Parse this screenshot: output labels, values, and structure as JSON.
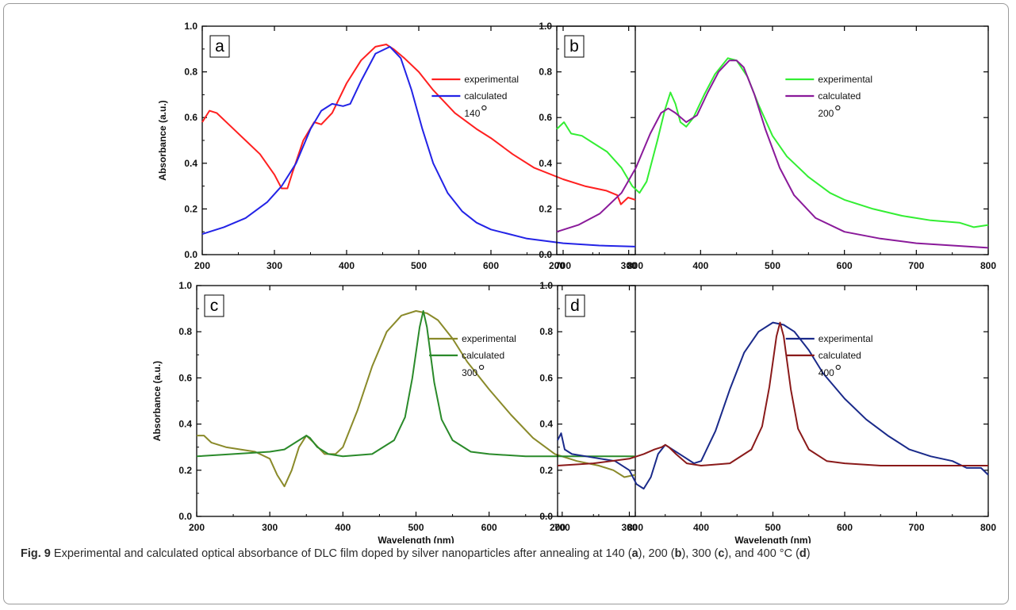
{
  "caption": {
    "label": "Fig. 9",
    "text_a": " Experimental and calculated optical absorbance of DLC film doped by silver nanoparticles after annealing at 140 (",
    "a": "a",
    "text_b": "), 200 (",
    "b": "b",
    "text_c": "), 300 (",
    "c": "c",
    "text_d": "), and 400 °C (",
    "d": "d",
    "text_end": ")"
  },
  "chart_data": [
    {
      "type": "line",
      "panel_label": "a",
      "temperature_label": "140",
      "ylabel": "Absorbance (a.u.)",
      "xlabel": "",
      "xlim": [
        200,
        800
      ],
      "ylim": [
        0.0,
        1.0
      ],
      "xticks": [
        200,
        300,
        400,
        500,
        600,
        700,
        800
      ],
      "yticks": [
        0.0,
        0.2,
        0.4,
        0.6,
        0.8,
        1.0
      ],
      "tick_labels_x": [
        "200",
        "300",
        "400",
        "500",
        "600",
        "700",
        "800"
      ],
      "tick_labels_y": [
        "0.0",
        "0.2",
        "0.4",
        "0.6",
        "0.8",
        "1.0"
      ],
      "legend_position": "top-right",
      "series": [
        {
          "name": "experimental",
          "color": "#ff2020",
          "x": [
            200,
            210,
            220,
            240,
            260,
            280,
            300,
            310,
            318,
            325,
            340,
            355,
            365,
            380,
            400,
            420,
            440,
            455,
            465,
            480,
            500,
            520,
            550,
            580,
            600,
            630,
            660,
            700,
            730,
            760,
            775,
            780,
            790,
            800
          ],
          "y": [
            0.58,
            0.63,
            0.62,
            0.56,
            0.5,
            0.44,
            0.35,
            0.29,
            0.29,
            0.36,
            0.5,
            0.58,
            0.57,
            0.62,
            0.75,
            0.85,
            0.91,
            0.92,
            0.9,
            0.86,
            0.8,
            0.72,
            0.62,
            0.55,
            0.51,
            0.44,
            0.38,
            0.33,
            0.3,
            0.28,
            0.26,
            0.22,
            0.25,
            0.24
          ]
        },
        {
          "name": "calculated",
          "color": "#2323e6",
          "x": [
            200,
            230,
            260,
            290,
            310,
            330,
            350,
            365,
            380,
            395,
            405,
            420,
            440,
            460,
            475,
            490,
            505,
            520,
            540,
            560,
            580,
            600,
            650,
            700,
            750,
            800
          ],
          "y": [
            0.09,
            0.12,
            0.16,
            0.23,
            0.3,
            0.4,
            0.55,
            0.63,
            0.66,
            0.65,
            0.66,
            0.76,
            0.88,
            0.91,
            0.86,
            0.72,
            0.55,
            0.4,
            0.27,
            0.19,
            0.14,
            0.11,
            0.07,
            0.05,
            0.04,
            0.035
          ]
        }
      ]
    },
    {
      "type": "line",
      "panel_label": "b",
      "temperature_label": "200",
      "ylabel": "",
      "xlabel": "",
      "xlim": [
        200,
        800
      ],
      "ylim": [
        0.0,
        1.0
      ],
      "xticks": [
        200,
        300,
        400,
        500,
        600,
        700,
        800
      ],
      "yticks": [
        0.0,
        0.2,
        0.4,
        0.6,
        0.8,
        1.0
      ],
      "tick_labels_x": [
        "200",
        "300",
        "400",
        "500",
        "600",
        "700",
        "800"
      ],
      "tick_labels_y": [
        "0.0",
        "0.2",
        "0.4",
        "0.6",
        "0.8",
        "1.0"
      ],
      "legend_position": "top-right",
      "series": [
        {
          "name": "experimental",
          "color": "#33ee33",
          "x": [
            200,
            210,
            220,
            235,
            250,
            270,
            290,
            305,
            315,
            325,
            340,
            350,
            358,
            365,
            372,
            380,
            390,
            405,
            420,
            438,
            450,
            465,
            480,
            500,
            520,
            550,
            580,
            600,
            640,
            680,
            720,
            760,
            780,
            800
          ],
          "y": [
            0.55,
            0.58,
            0.53,
            0.52,
            0.49,
            0.45,
            0.38,
            0.3,
            0.27,
            0.32,
            0.5,
            0.63,
            0.71,
            0.66,
            0.58,
            0.56,
            0.6,
            0.7,
            0.79,
            0.86,
            0.85,
            0.78,
            0.66,
            0.52,
            0.43,
            0.34,
            0.27,
            0.24,
            0.2,
            0.17,
            0.15,
            0.14,
            0.12,
            0.13
          ]
        },
        {
          "name": "calculated",
          "color": "#8a1a9a",
          "x": [
            200,
            230,
            260,
            290,
            310,
            330,
            345,
            355,
            365,
            380,
            395,
            410,
            425,
            440,
            450,
            460,
            475,
            490,
            510,
            530,
            560,
            600,
            650,
            700,
            750,
            800
          ],
          "y": [
            0.1,
            0.13,
            0.18,
            0.27,
            0.38,
            0.53,
            0.62,
            0.64,
            0.62,
            0.58,
            0.61,
            0.71,
            0.8,
            0.85,
            0.85,
            0.82,
            0.7,
            0.55,
            0.38,
            0.26,
            0.16,
            0.1,
            0.07,
            0.05,
            0.04,
            0.03
          ]
        }
      ]
    },
    {
      "type": "line",
      "panel_label": "c",
      "temperature_label": "300",
      "ylabel": "Absorbance (a.u.)",
      "xlabel": "Wavelength (nm)",
      "xlim": [
        200,
        800
      ],
      "ylim": [
        0.0,
        1.0
      ],
      "xticks": [
        200,
        300,
        400,
        500,
        600,
        700,
        800
      ],
      "yticks": [
        0.0,
        0.2,
        0.4,
        0.6,
        0.8,
        1.0
      ],
      "tick_labels_x": [
        "200",
        "300",
        "400",
        "500",
        "600",
        "700",
        "800"
      ],
      "tick_labels_y": [
        "0.0",
        "0.2",
        "0.4",
        "0.6",
        "0.8",
        "1.0"
      ],
      "legend_position": "top-right",
      "series": [
        {
          "name": "experimental",
          "color": "#8a8a2a",
          "x": [
            200,
            210,
            220,
            240,
            260,
            280,
            300,
            310,
            320,
            330,
            340,
            350,
            360,
            375,
            390,
            400,
            420,
            440,
            460,
            480,
            500,
            515,
            530,
            550,
            570,
            600,
            630,
            660,
            690,
            720,
            750,
            770,
            785,
            800
          ],
          "y": [
            0.35,
            0.35,
            0.32,
            0.3,
            0.29,
            0.28,
            0.25,
            0.18,
            0.13,
            0.2,
            0.3,
            0.35,
            0.32,
            0.27,
            0.27,
            0.3,
            0.46,
            0.65,
            0.8,
            0.87,
            0.89,
            0.88,
            0.85,
            0.77,
            0.67,
            0.55,
            0.44,
            0.34,
            0.27,
            0.24,
            0.22,
            0.2,
            0.17,
            0.18
          ]
        },
        {
          "name": "calculated",
          "color": "#2a8a2a",
          "x": [
            200,
            250,
            300,
            320,
            335,
            345,
            350,
            355,
            365,
            380,
            400,
            440,
            470,
            485,
            495,
            505,
            510,
            515,
            525,
            535,
            550,
            575,
            600,
            650,
            700,
            800
          ],
          "y": [
            0.26,
            0.27,
            0.28,
            0.29,
            0.32,
            0.34,
            0.35,
            0.34,
            0.3,
            0.27,
            0.26,
            0.27,
            0.33,
            0.43,
            0.6,
            0.82,
            0.89,
            0.82,
            0.58,
            0.42,
            0.33,
            0.28,
            0.27,
            0.26,
            0.26,
            0.26
          ]
        }
      ]
    },
    {
      "type": "line",
      "panel_label": "d",
      "temperature_label": "400",
      "ylabel": "",
      "xlabel": "Wavelength (nm)",
      "xlim": [
        200,
        800
      ],
      "ylim": [
        0.0,
        1.0
      ],
      "xticks": [
        200,
        300,
        400,
        500,
        600,
        700,
        800
      ],
      "yticks": [
        0.0,
        0.2,
        0.4,
        0.6,
        0.8,
        1.0
      ],
      "tick_labels_x": [
        "200",
        "300",
        "400",
        "500",
        "600",
        "700",
        "800"
      ],
      "tick_labels_y": [
        "0.0",
        "0.2",
        "0.4",
        "0.6",
        "0.8",
        "1.0"
      ],
      "legend_position": "top-right",
      "series": [
        {
          "name": "experimental",
          "color": "#1a2a8a",
          "x": [
            200,
            205,
            210,
            220,
            240,
            260,
            280,
            300,
            310,
            320,
            330,
            340,
            350,
            360,
            375,
            390,
            400,
            420,
            440,
            460,
            480,
            500,
            515,
            530,
            550,
            570,
            600,
            630,
            660,
            690,
            720,
            750,
            770,
            790,
            800
          ],
          "y": [
            0.33,
            0.36,
            0.29,
            0.27,
            0.26,
            0.25,
            0.24,
            0.2,
            0.14,
            0.12,
            0.17,
            0.27,
            0.31,
            0.29,
            0.26,
            0.23,
            0.24,
            0.37,
            0.55,
            0.71,
            0.8,
            0.84,
            0.83,
            0.8,
            0.72,
            0.62,
            0.51,
            0.42,
            0.35,
            0.29,
            0.26,
            0.24,
            0.21,
            0.21,
            0.18
          ]
        },
        {
          "name": "calculated",
          "color": "#8a1a1a",
          "x": [
            200,
            250,
            300,
            320,
            335,
            345,
            350,
            355,
            365,
            380,
            400,
            440,
            470,
            485,
            495,
            505,
            510,
            515,
            525,
            535,
            550,
            575,
            600,
            650,
            700,
            800
          ],
          "y": [
            0.22,
            0.23,
            0.25,
            0.27,
            0.29,
            0.3,
            0.31,
            0.3,
            0.27,
            0.23,
            0.22,
            0.23,
            0.29,
            0.39,
            0.56,
            0.78,
            0.84,
            0.78,
            0.55,
            0.38,
            0.29,
            0.24,
            0.23,
            0.22,
            0.22,
            0.22
          ]
        }
      ]
    }
  ]
}
